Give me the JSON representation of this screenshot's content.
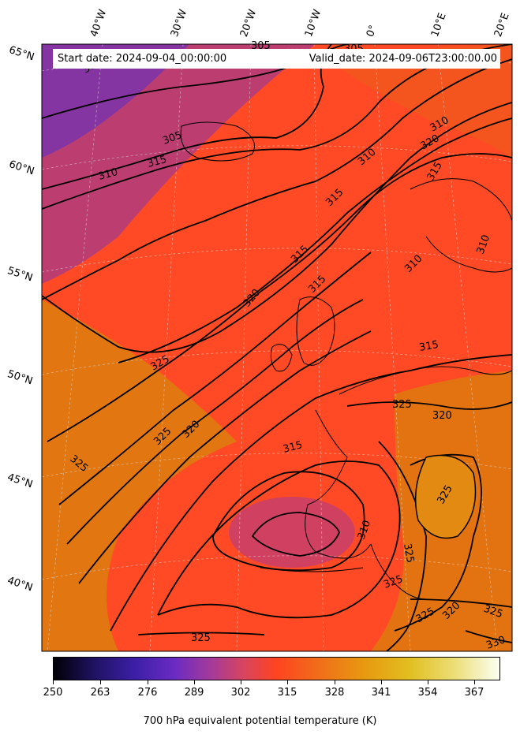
{
  "header": {
    "start_date": "Start date: 2024-09-04_00:00:00",
    "valid_date": "Valid_date: 2024-09-06T23:00:00.00"
  },
  "lat_labels": [
    "65°N",
    "60°N",
    "55°N",
    "50°N",
    "45°N",
    "40°N"
  ],
  "lon_labels": [
    "40°W",
    "30°W",
    "20°W",
    "10°W",
    "0°",
    "10°E",
    "20°E"
  ],
  "contour_labels": [
    "300",
    "305",
    "305",
    "305",
    "310",
    "310",
    "310",
    "310",
    "310",
    "310",
    "315",
    "315",
    "315",
    "315",
    "315",
    "315",
    "315",
    "320",
    "320",
    "320",
    "320",
    "320",
    "325",
    "325",
    "325",
    "325",
    "325",
    "325",
    "325",
    "325",
    "325",
    "325",
    "330"
  ],
  "colorbar": {
    "ticks": [
      "250",
      "263",
      "276",
      "289",
      "302",
      "315",
      "328",
      "341",
      "354",
      "367"
    ],
    "label": "700 hPa equivalent potential temperature (K)"
  },
  "colors": {
    "cold": "#7a36a8",
    "mid": "#ff4a25",
    "warm": "#e4800f",
    "contour": "#000000"
  }
}
